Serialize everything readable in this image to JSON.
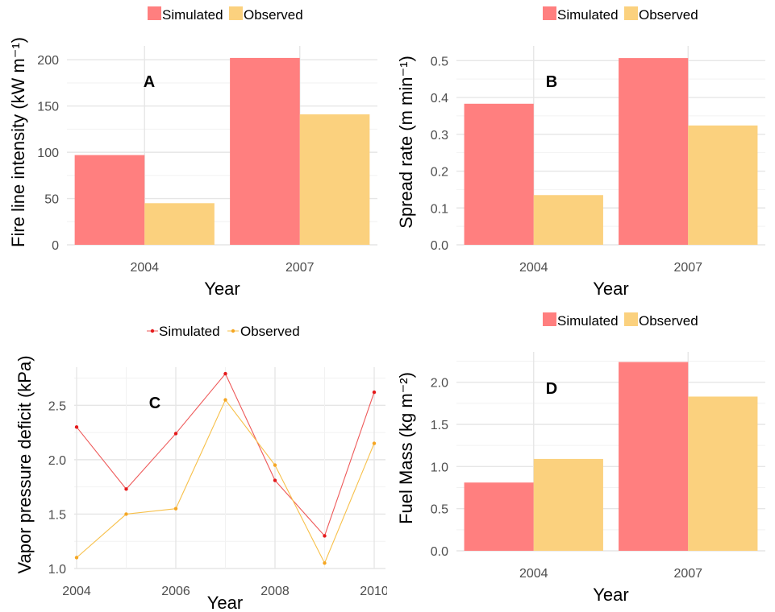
{
  "chart_data": [
    {
      "panel": "A",
      "type": "bar",
      "categories": [
        "2004",
        "2007"
      ],
      "series": [
        {
          "name": "Simulated",
          "values": [
            97,
            202
          ]
        },
        {
          "name": "Observed",
          "values": [
            45,
            141
          ]
        }
      ],
      "xlabel": "Year",
      "ylabel": "Fire line intensity (kW m⁻¹)",
      "ylim": [
        0,
        215
      ],
      "yticks": [
        0,
        50,
        100,
        150,
        200
      ],
      "grid": true,
      "legend_position": "top"
    },
    {
      "panel": "B",
      "type": "bar",
      "categories": [
        "2004",
        "2007"
      ],
      "series": [
        {
          "name": "Simulated",
          "values": [
            0.383,
            0.507
          ]
        },
        {
          "name": "Observed",
          "values": [
            0.135,
            0.324
          ]
        }
      ],
      "xlabel": "Year",
      "ylabel": "Spread rate (m min⁻¹)",
      "ylim": [
        0,
        0.54
      ],
      "yticks": [
        0.0,
        0.1,
        0.2,
        0.3,
        0.4,
        0.5
      ],
      "grid": true,
      "legend_position": "top"
    },
    {
      "panel": "C",
      "type": "line",
      "x": [
        2004,
        2005,
        2006,
        2007,
        2008,
        2009,
        2010
      ],
      "series": [
        {
          "name": "Simulated",
          "values": [
            2.3,
            1.73,
            2.24,
            2.79,
            1.81,
            1.3,
            2.62
          ]
        },
        {
          "name": "Observed",
          "values": [
            1.1,
            1.5,
            1.55,
            2.55,
            1.95,
            1.05,
            2.15
          ]
        }
      ],
      "xlabel": "Year",
      "ylabel": "Vapor pressure deficit (kPa)",
      "xlim": [
        2004,
        2010
      ],
      "ylim": [
        1.0,
        2.85
      ],
      "xticks": [
        2004,
        2006,
        2008,
        2010
      ],
      "yticks": [
        1.0,
        1.5,
        2.0,
        2.5
      ],
      "grid": true,
      "legend_position": "top"
    },
    {
      "panel": "D",
      "type": "bar",
      "categories": [
        "2004",
        "2007"
      ],
      "series": [
        {
          "name": "Simulated",
          "values": [
            0.81,
            2.24
          ]
        },
        {
          "name": "Observed",
          "values": [
            1.09,
            1.83
          ]
        }
      ],
      "xlabel": "Year",
      "ylabel": "Fuel Mass (kg m⁻²)",
      "ylim": [
        0,
        2.36
      ],
      "yticks": [
        0.0,
        0.5,
        1.0,
        1.5,
        2.0
      ],
      "grid": true,
      "legend_position": "top"
    }
  ],
  "colors": {
    "bar_simulated": "#ff7f7f",
    "bar_observed": "#fbd17e",
    "line_simulated": "#ee5a5a",
    "line_observed": "#f7c04a",
    "point_simulated": "#e41a1c",
    "point_observed": "#f5a623"
  }
}
